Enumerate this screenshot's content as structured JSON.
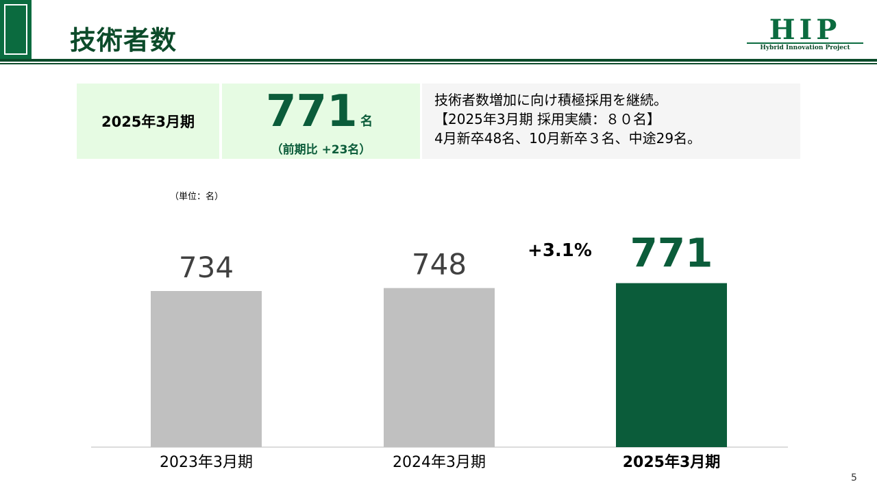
{
  "header": {
    "title": "技術者数",
    "logo": {
      "text": "HIP",
      "subtitle": "Hybrid Innovation Project"
    }
  },
  "summary": {
    "period": "2025年3月期",
    "value": "771",
    "unit": "名",
    "change": "（前期比 +23名）",
    "notes": [
      "技術者数増加に向け積極採用を継続。",
      "【2025年3月期 採用実績：８０名】",
      "4月新卒48名、10月新卒３名、中途29名。"
    ]
  },
  "unit_label": "（単位：名）",
  "growth_label": "+3.1%",
  "page_number": "5",
  "colors": {
    "accent": "#0b5c3a",
    "bar_default": "#c0c0c0",
    "bar_highlight": "#0b5c3a",
    "summary_bg": "#e6fbe3",
    "note_bg": "#f5f5f5"
  },
  "chart_data": {
    "type": "bar",
    "categories": [
      "2023年3月期",
      "2024年3月期",
      "2025年3月期"
    ],
    "values": [
      734,
      748,
      771
    ],
    "highlight_index": 2,
    "ylim": [
      0,
      800
    ],
    "grid": false,
    "legend": "none",
    "annotation": "+3.1%"
  }
}
